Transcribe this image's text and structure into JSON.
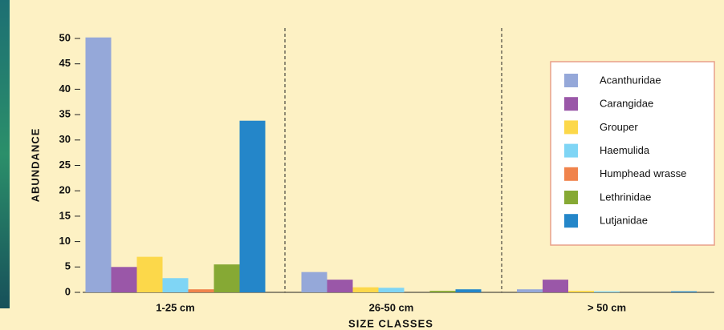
{
  "chart_data": {
    "type": "bar",
    "x_label": "SIZE CLASSES",
    "y_label": "ABUNDANCE",
    "categories": [
      "1-25 cm",
      "26-50 cm",
      "> 50 cm"
    ],
    "series": [
      {
        "name": "Acanthuridae",
        "color": "#95a8d9",
        "values": [
          50.2,
          4,
          0.6
        ]
      },
      {
        "name": "Carangidae",
        "color": "#9a57a8",
        "values": [
          5,
          2.5,
          2.5
        ]
      },
      {
        "name": "Grouper",
        "color": "#fcd84a",
        "values": [
          7,
          1,
          0.3
        ]
      },
      {
        "name": "Haemulida",
        "color": "#7fd5f5",
        "values": [
          2.8,
          0.9,
          0.2
        ]
      },
      {
        "name": "Humphead wrasse",
        "color": "#f0834c",
        "values": [
          0.6,
          0,
          0
        ]
      },
      {
        "name": "Lethrinidae",
        "color": "#86a934",
        "values": [
          5.5,
          0.3,
          0
        ]
      },
      {
        "name": "Lutjanidae",
        "color": "#2486c9",
        "values": [
          33.8,
          0.6,
          0.2
        ]
      }
    ],
    "ylim": [
      0,
      50
    ],
    "yticks": [
      0,
      5,
      10,
      15,
      20,
      25,
      30,
      35,
      40,
      45,
      50
    ]
  }
}
